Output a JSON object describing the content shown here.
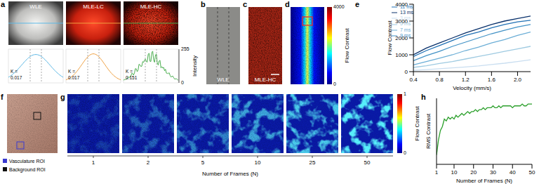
{
  "panels": {
    "a": {
      "letter": "a",
      "images": [
        {
          "label": "WLE",
          "K": 0.017,
          "color": "#5bb8e6"
        },
        {
          "label": "MLE-LC",
          "K": 0.017,
          "color": "#f0a040"
        },
        {
          "label": "MLE-HC",
          "K": 0.151,
          "color": "#4caf50"
        }
      ],
      "k_prefix": "K =",
      "profile_ticks": [
        0,
        255
      ],
      "profile_label": "Intensity"
    },
    "b": {
      "letter": "b",
      "label": "WLE"
    },
    "c": {
      "letter": "c",
      "label": "MLE-HC"
    },
    "d": {
      "letter": "d",
      "colorbar": {
        "range": [
          0,
          4000
        ],
        "ticks": [
          0,
          4000
        ],
        "label": "Flow Contrast"
      }
    },
    "e": {
      "letter": "e"
    },
    "f": {
      "letter": "f",
      "rois": [
        {
          "label": "Vasculature ROI",
          "color": "#3a3ad0"
        },
        {
          "label": "Background ROI",
          "color": "#111111"
        }
      ]
    },
    "g": {
      "letter": "g",
      "frames": [
        1,
        2,
        5,
        10,
        25,
        50
      ],
      "label": "Number of Frames (N)",
      "colorbar": {
        "range": [
          0,
          1
        ],
        "ticks": [
          0,
          1
        ],
        "label": "Flow Contrast"
      }
    },
    "h": {
      "letter": "h"
    }
  },
  "chart_data": [
    {
      "type": "line",
      "xlabel": "Velocity (mm/s)",
      "ylabel": "Flow Contrast",
      "x": [
        0.4,
        0.6,
        0.8,
        1.0,
        1.2,
        1.4,
        1.6,
        1.8,
        2.0,
        2.2
      ],
      "xlim": [
        0.4,
        2.2
      ],
      "xticks": [
        0.4,
        0.8,
        1.2,
        1.6,
        {
          "value": 2,
          "label": "2.0"
        }
      ],
      "ylim": [
        0,
        4000
      ],
      "yticks": [
        0,
        1000,
        2000,
        3000,
        4000
      ],
      "legend": "upper left",
      "series": [
        {
          "name": "3 ms",
          "color": "#c9def0",
          "values": [
            80,
            120,
            170,
            220,
            280,
            340,
            420,
            500,
            600,
            700
          ]
        },
        {
          "name": "5 ms",
          "color": "#9ecae1",
          "values": [
            250,
            350,
            480,
            600,
            750,
            900,
            1050,
            1200,
            1350,
            1500
          ]
        },
        {
          "name": "7 ms",
          "color": "#6baed6",
          "values": [
            400,
            600,
            800,
            1000,
            1250,
            1450,
            1700,
            1900,
            2150,
            2350
          ]
        },
        {
          "name": "9 ms",
          "color": "#4292c6",
          "values": [
            650,
            950,
            1200,
            1500,
            1750,
            2000,
            2250,
            2450,
            2650,
            2800
          ]
        },
        {
          "name": "11 ms",
          "color": "#2171b5",
          "values": [
            900,
            1250,
            1550,
            1850,
            2150,
            2350,
            2600,
            2800,
            2950,
            3050
          ]
        },
        {
          "name": "13 ms",
          "color": "#08306b",
          "values": [
            1000,
            1400,
            1700,
            2000,
            2300,
            2550,
            2800,
            3000,
            3150,
            3300
          ]
        }
      ]
    },
    {
      "type": "line",
      "xlabel": "Number of Frames (N)",
      "ylabel": "RMS Contrast",
      "color": "#2ca02c",
      "x": [
        1,
        2,
        3,
        4,
        5,
        6,
        7,
        8,
        9,
        10,
        11,
        12,
        13,
        14,
        15,
        16,
        17,
        18,
        19,
        20,
        21,
        22,
        23,
        24,
        25,
        26,
        27,
        28,
        29,
        30,
        31,
        32,
        33,
        34,
        35,
        36,
        37,
        38,
        39,
        40,
        41,
        42,
        43,
        44,
        45,
        46,
        47,
        48,
        49,
        50
      ],
      "values": [
        0.05,
        0.13,
        0.18,
        0.2,
        0.24,
        0.23,
        0.25,
        0.24,
        0.25,
        0.24,
        0.26,
        0.25,
        0.26,
        0.27,
        0.26,
        0.27,
        0.28,
        0.27,
        0.28,
        0.28,
        0.29,
        0.28,
        0.29,
        0.29,
        0.3,
        0.29,
        0.3,
        0.3,
        0.3,
        0.31,
        0.3,
        0.3,
        0.31,
        0.3,
        0.31,
        0.31,
        0.31,
        0.31,
        0.31,
        0.3,
        0.31,
        0.31,
        0.31,
        0.31,
        0.32,
        0.31,
        0.31,
        0.32,
        0.32,
        0.32
      ],
      "xlim": [
        1,
        50
      ],
      "xticks": [
        1,
        10,
        20,
        30,
        40,
        50
      ],
      "ylim": [
        0,
        0.35
      ],
      "tick_labels": "x"
    }
  ]
}
